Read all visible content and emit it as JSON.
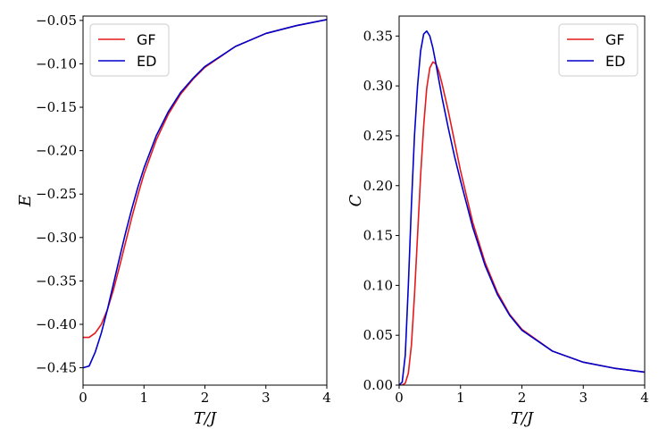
{
  "chart_data": [
    {
      "type": "line",
      "xlabel": "T/J",
      "ylabel": "E",
      "xlim": [
        0,
        4
      ],
      "ylim": [
        -0.47,
        -0.045
      ],
      "xticks": [
        "0",
        "1",
        "2",
        "3",
        "4"
      ],
      "yticks": [
        "−0.45",
        "−0.40",
        "−0.35",
        "−0.30",
        "−0.25",
        "−0.20",
        "−0.15",
        "−0.10",
        "−0.05"
      ],
      "legend_position": "top-left",
      "grid": false,
      "series": [
        {
          "name": "GF",
          "color": "#e41a1c",
          "x": [
            0,
            0.1,
            0.2,
            0.3,
            0.4,
            0.5,
            0.6,
            0.7,
            0.8,
            0.9,
            1.0,
            1.2,
            1.4,
            1.6,
            1.8,
            2.0,
            2.5,
            3.0,
            3.5,
            4.0
          ],
          "y": [
            -0.415,
            -0.415,
            -0.41,
            -0.4,
            -0.383,
            -0.36,
            -0.333,
            -0.305,
            -0.277,
            -0.251,
            -0.227,
            -0.188,
            -0.158,
            -0.135,
            -0.118,
            -0.104,
            -0.08,
            -0.065,
            -0.056,
            -0.049
          ]
        },
        {
          "name": "ED",
          "color": "#0000cc",
          "x": [
            0,
            0.1,
            0.2,
            0.3,
            0.4,
            0.5,
            0.6,
            0.7,
            0.8,
            0.9,
            1.0,
            1.2,
            1.4,
            1.6,
            1.8,
            2.0,
            2.5,
            3.0,
            3.5,
            4.0
          ],
          "y": [
            -0.45,
            -0.448,
            -0.432,
            -0.41,
            -0.383,
            -0.353,
            -0.323,
            -0.294,
            -0.267,
            -0.242,
            -0.22,
            -0.183,
            -0.155,
            -0.133,
            -0.117,
            -0.103,
            -0.08,
            -0.065,
            -0.056,
            -0.049
          ]
        }
      ]
    },
    {
      "type": "line",
      "xlabel": "T/J",
      "ylabel": "C",
      "xlim": [
        0,
        4
      ],
      "ylim": [
        0,
        0.37
      ],
      "xticks": [
        "0",
        "1",
        "2",
        "3",
        "4"
      ],
      "yticks": [
        "0.00",
        "0.05",
        "0.10",
        "0.15",
        "0.20",
        "0.25",
        "0.30",
        "0.35"
      ],
      "legend_position": "top-right",
      "grid": false,
      "series": [
        {
          "name": "GF",
          "color": "#e41a1c",
          "x": [
            0,
            0.05,
            0.1,
            0.15,
            0.2,
            0.25,
            0.3,
            0.35,
            0.4,
            0.45,
            0.5,
            0.55,
            0.6,
            0.65,
            0.7,
            0.8,
            0.9,
            1.0,
            1.2,
            1.4,
            1.6,
            1.8,
            2.0,
            2.5,
            3.0,
            3.5,
            4.0
          ],
          "y": [
            0,
            0.0,
            0.002,
            0.012,
            0.04,
            0.09,
            0.15,
            0.21,
            0.26,
            0.298,
            0.318,
            0.324,
            0.322,
            0.314,
            0.302,
            0.275,
            0.245,
            0.215,
            0.163,
            0.123,
            0.093,
            0.071,
            0.056,
            0.034,
            0.023,
            0.017,
            0.013
          ]
        },
        {
          "name": "ED",
          "color": "#0000cc",
          "x": [
            0,
            0.05,
            0.1,
            0.15,
            0.2,
            0.25,
            0.3,
            0.35,
            0.4,
            0.45,
            0.5,
            0.55,
            0.6,
            0.65,
            0.7,
            0.8,
            0.9,
            1.0,
            1.2,
            1.4,
            1.6,
            1.8,
            2.0,
            2.5,
            3.0,
            3.5,
            4.0
          ],
          "y": [
            0,
            0.003,
            0.03,
            0.1,
            0.18,
            0.25,
            0.3,
            0.335,
            0.352,
            0.355,
            0.35,
            0.338,
            0.322,
            0.305,
            0.288,
            0.258,
            0.23,
            0.205,
            0.158,
            0.12,
            0.091,
            0.07,
            0.055,
            0.034,
            0.023,
            0.017,
            0.013
          ]
        }
      ]
    }
  ]
}
